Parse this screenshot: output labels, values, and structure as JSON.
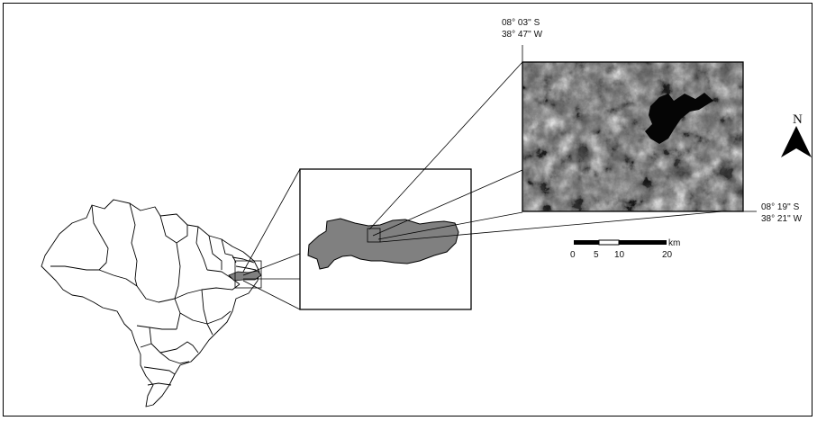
{
  "top_corner": {
    "lat": "08° 03'' S",
    "lon": "38° 47'' W"
  },
  "bottom_corner": {
    "lat": "08° 19'' S",
    "lon": "38° 21'' W"
  },
  "north_label": "N",
  "scale_bar": {
    "ticks": [
      "0",
      "5",
      "10",
      "20"
    ],
    "unit": "km"
  },
  "colors": {
    "state_fill": "#808080",
    "line": "#000000"
  }
}
